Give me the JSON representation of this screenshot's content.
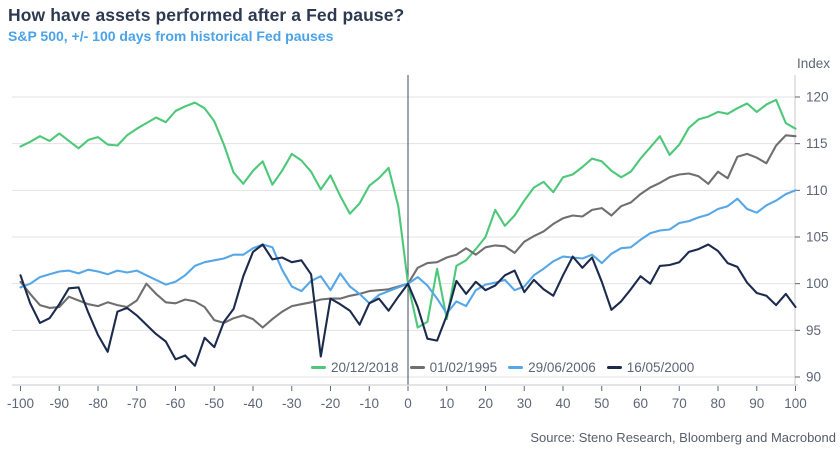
{
  "header": {
    "title": "How have assets performed after a Fed pause?",
    "subtitle": "S&P 500, +/- 100 days from historical Fed pauses"
  },
  "axis": {
    "index_label": "Index"
  },
  "footer": {
    "source": "Source: Steno Research, Bloomberg and Macrobond"
  },
  "colors": {
    "title": "#2d3950",
    "subtitle": "#4aa3e8",
    "axis_text": "#5d6577",
    "grid": "#e3e3e3",
    "axis_line": "#c9c9c9",
    "zero_line": "#3c4861",
    "background": "#ffffff"
  },
  "chart_data": {
    "type": "line",
    "title": "How have assets performed after a Fed pause?",
    "subtitle": "S&P 500, +/- 100 days from historical Fed pauses",
    "ylabel": "Index",
    "xlim": [
      -100,
      100
    ],
    "ylim": [
      88,
      121
    ],
    "x_start": -100,
    "x_step": 2.5,
    "x_ticks": [
      -100,
      -90,
      -80,
      -70,
      -60,
      -50,
      -40,
      -30,
      -20,
      -10,
      0,
      10,
      20,
      30,
      40,
      50,
      60,
      70,
      80,
      90,
      100
    ],
    "y_ticks": [
      90,
      95,
      100,
      105,
      110,
      115,
      120
    ],
    "grid": "horizontal",
    "zero_vline": 0,
    "legend_position": "bottom-inside",
    "series": [
      {
        "name": "20/12/2018",
        "color": "#4dc879",
        "values": [
          114.7,
          115.2,
          115.8,
          115.3,
          116.1,
          115.3,
          114.5,
          115.4,
          115.7,
          114.9,
          114.8,
          115.9,
          116.6,
          117.2,
          117.8,
          117.3,
          118.5,
          119.0,
          119.4,
          118.8,
          117.4,
          114.9,
          111.9,
          110.7,
          112.1,
          113.1,
          110.6,
          112.1,
          113.9,
          113.2,
          112.0,
          110.1,
          111.6,
          109.4,
          107.5,
          108.6,
          110.5,
          111.3,
          112.4,
          108.3,
          100.0,
          95.3,
          95.9,
          101.6,
          96.2,
          101.9,
          102.5,
          103.7,
          105.0,
          107.9,
          106.2,
          107.3,
          108.9,
          110.3,
          110.9,
          109.8,
          111.4,
          111.7,
          112.5,
          113.4,
          113.1,
          112.1,
          111.4,
          112.0,
          113.4,
          114.6,
          115.8,
          113.8,
          114.9,
          116.7,
          117.6,
          117.9,
          118.4,
          118.2,
          118.8,
          119.3,
          118.4,
          119.2,
          119.7,
          117.2,
          116.6
        ]
      },
      {
        "name": "01/02/1995",
        "color": "#6f6f6f",
        "values": [
          100.2,
          98.9,
          97.7,
          97.4,
          97.5,
          98.6,
          98.2,
          97.8,
          97.6,
          98.0,
          97.7,
          97.5,
          98.2,
          100.0,
          98.9,
          98.0,
          97.9,
          98.3,
          98.1,
          97.5,
          96.1,
          95.8,
          96.3,
          96.6,
          96.2,
          95.3,
          96.2,
          97.0,
          97.6,
          97.8,
          98.0,
          98.3,
          98.4,
          98.4,
          98.7,
          98.9,
          99.2,
          99.3,
          99.4,
          99.7,
          100.0,
          101.7,
          102.2,
          102.3,
          102.8,
          103.1,
          103.8,
          103.1,
          103.9,
          104.1,
          104.0,
          103.3,
          104.5,
          105.1,
          105.6,
          106.4,
          107.0,
          107.3,
          107.2,
          107.9,
          108.1,
          107.3,
          108.3,
          108.7,
          109.6,
          110.3,
          110.8,
          111.4,
          111.7,
          111.8,
          111.5,
          110.7,
          112.0,
          111.3,
          113.6,
          113.9,
          113.5,
          112.9,
          114.8,
          115.9,
          115.8
        ]
      },
      {
        "name": "29/06/2006",
        "color": "#55a7e8",
        "values": [
          99.6,
          100.0,
          100.7,
          101.0,
          101.3,
          101.4,
          101.1,
          101.5,
          101.3,
          101.0,
          101.4,
          101.2,
          101.4,
          100.9,
          100.4,
          99.9,
          100.2,
          100.9,
          101.9,
          102.3,
          102.5,
          102.7,
          103.1,
          103.1,
          103.8,
          104.2,
          103.9,
          101.5,
          99.7,
          99.2,
          100.3,
          100.8,
          99.3,
          101.1,
          99.7,
          98.9,
          97.9,
          98.8,
          99.2,
          99.6,
          100.0,
          100.7,
          99.8,
          98.4,
          96.8,
          98.1,
          97.6,
          99.3,
          99.9,
          100.1,
          100.4,
          99.3,
          99.7,
          100.9,
          101.6,
          102.4,
          102.9,
          102.8,
          102.7,
          103.1,
          102.2,
          103.2,
          103.8,
          103.9,
          104.7,
          105.4,
          105.7,
          105.8,
          106.5,
          106.7,
          107.1,
          107.4,
          108.0,
          108.3,
          109.1,
          108.0,
          107.6,
          108.4,
          108.9,
          109.6,
          110.0
        ]
      },
      {
        "name": "16/05/2000",
        "color": "#1c2b4d",
        "values": [
          100.9,
          97.9,
          95.8,
          96.3,
          97.8,
          99.5,
          99.6,
          96.9,
          94.5,
          92.7,
          97.0,
          97.4,
          96.6,
          95.6,
          94.6,
          93.8,
          91.9,
          92.3,
          91.2,
          94.2,
          93.2,
          95.9,
          97.3,
          100.8,
          103.4,
          104.2,
          102.6,
          102.8,
          102.3,
          102.5,
          101.0,
          92.2,
          98.4,
          97.8,
          97.1,
          95.6,
          97.9,
          98.4,
          97.1,
          98.6,
          100.0,
          97.5,
          94.1,
          93.9,
          96.6,
          100.3,
          98.9,
          100.2,
          99.3,
          99.8,
          100.9,
          101.4,
          99.1,
          100.4,
          99.4,
          98.7,
          100.9,
          102.9,
          101.7,
          102.8,
          100.2,
          97.2,
          98.1,
          99.4,
          100.8,
          100.0,
          101.9,
          102.0,
          102.3,
          103.4,
          103.7,
          104.2,
          103.5,
          102.2,
          101.8,
          100.1,
          99.0,
          98.7,
          97.7,
          98.9,
          97.5
        ]
      }
    ]
  }
}
